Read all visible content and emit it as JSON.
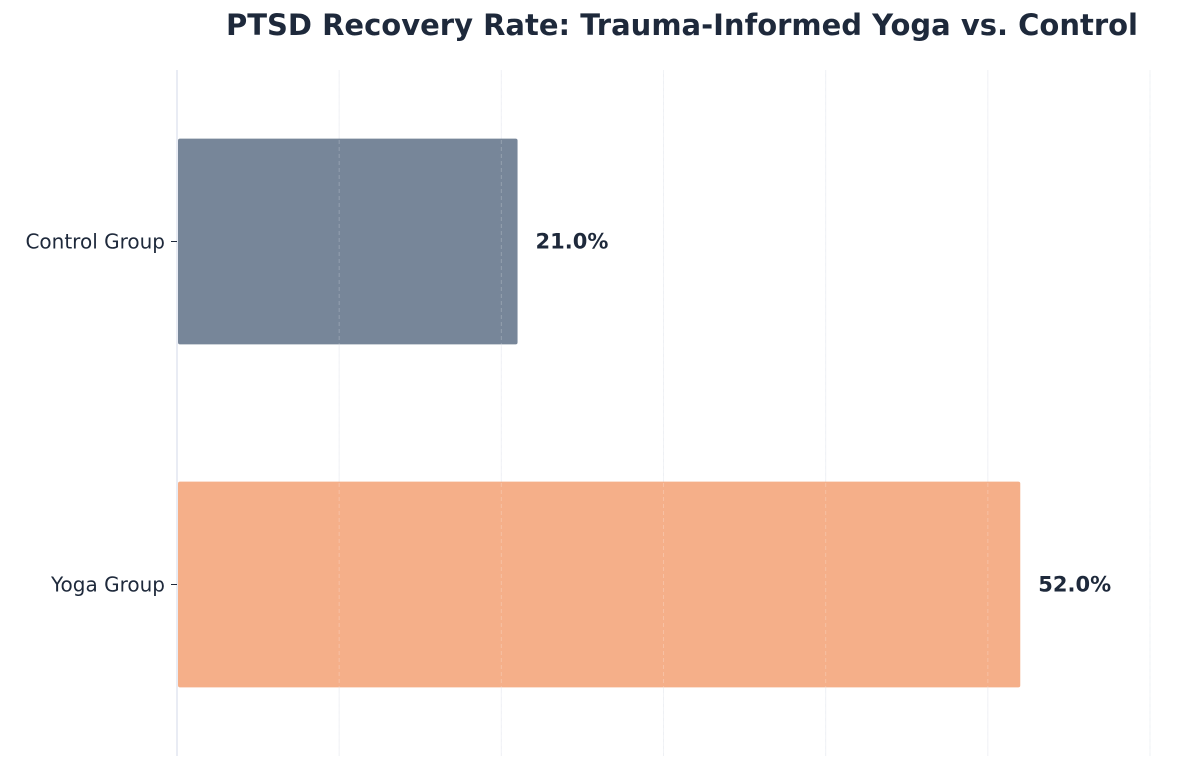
{
  "chart_data": {
    "type": "bar",
    "orientation": "horizontal",
    "title": "PTSD Recovery Rate: Trauma-Informed Yoga vs. Control",
    "xlabel": "",
    "ylabel": "",
    "categories": [
      "Control Group",
      "Yoga Group"
    ],
    "values": [
      21.0,
      52.0
    ],
    "value_labels": [
      "21.0%",
      "52.0%"
    ],
    "colors": [
      "#778699",
      "#f5af89"
    ],
    "xlim": [
      0,
      60
    ],
    "grid": true,
    "legend": "none"
  }
}
